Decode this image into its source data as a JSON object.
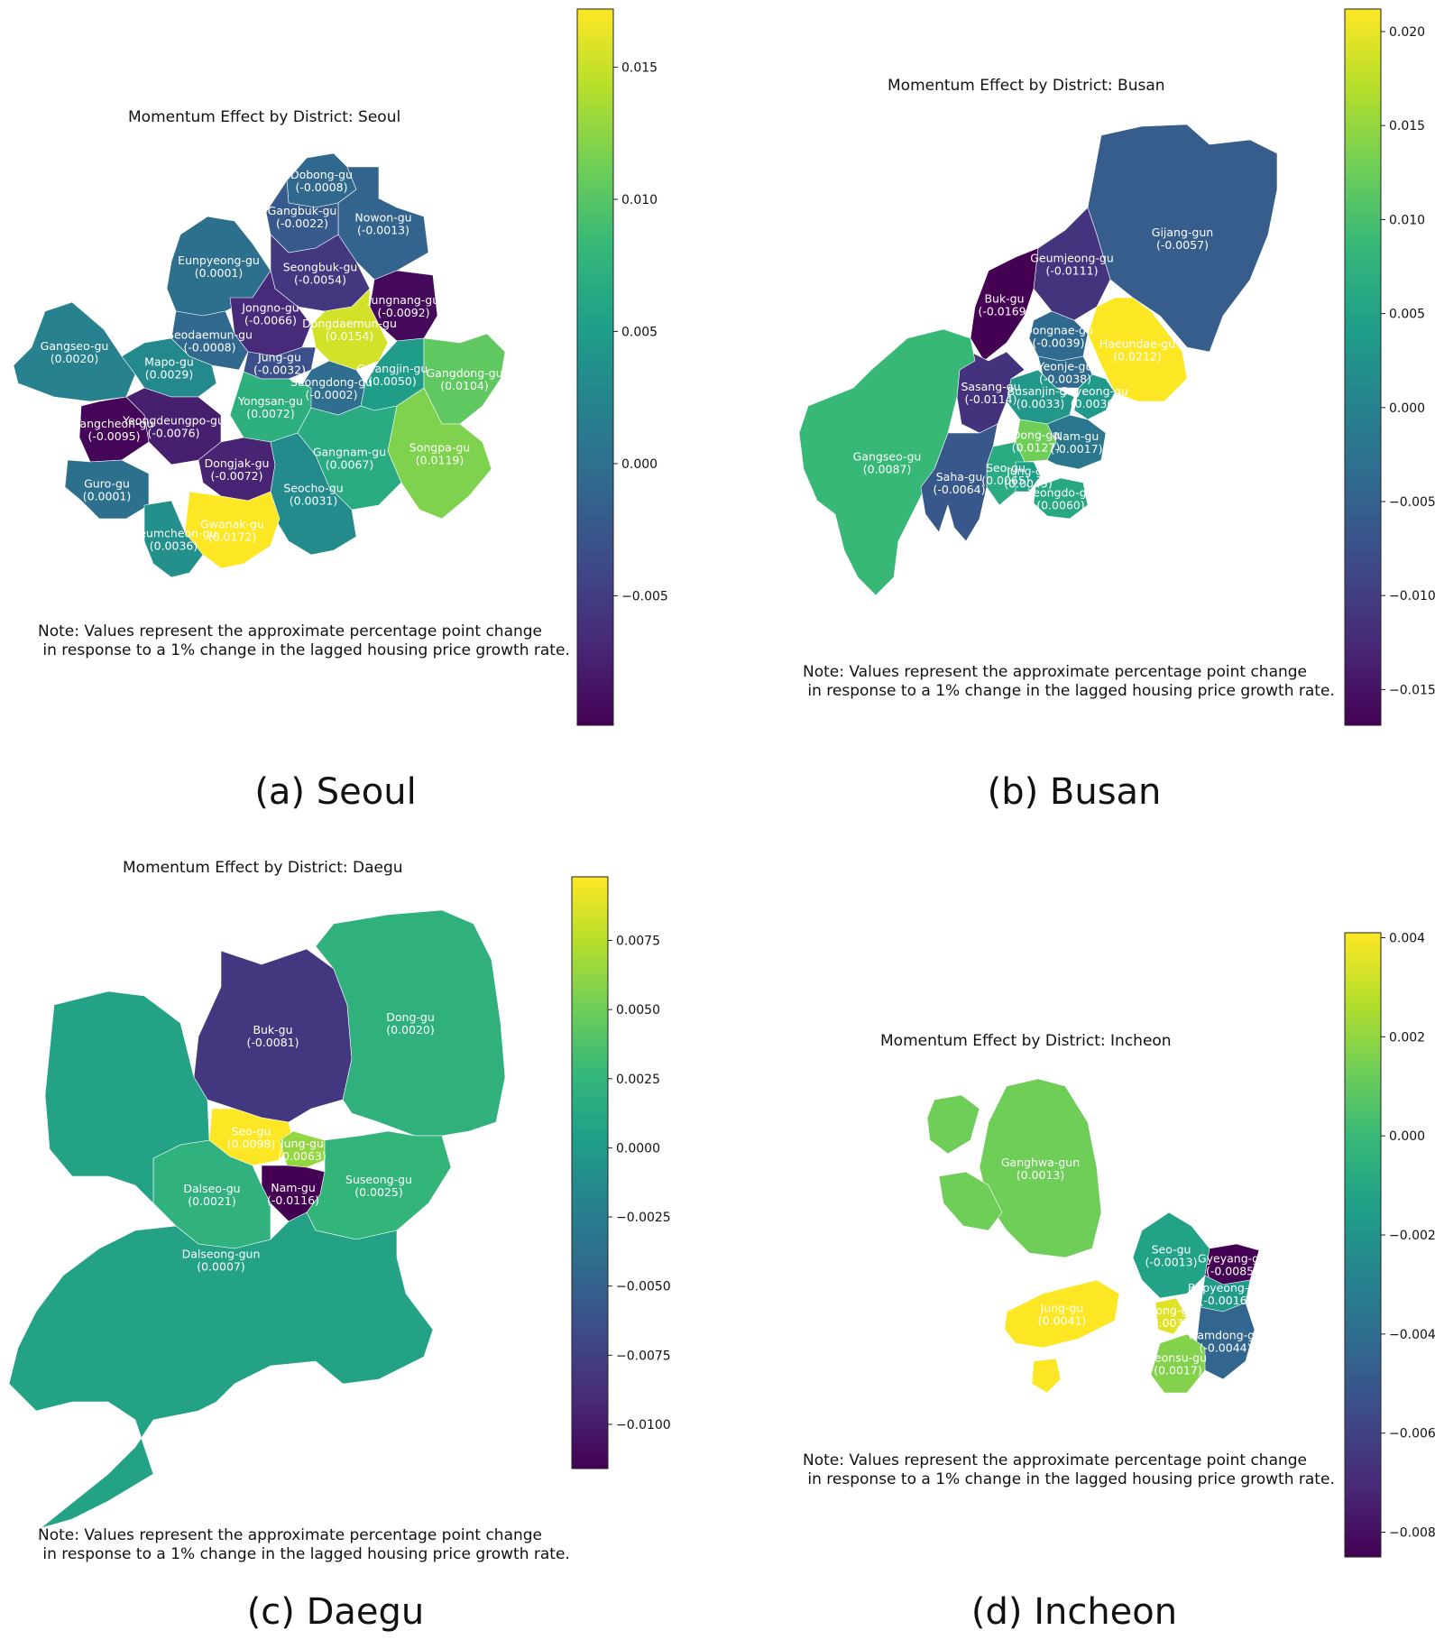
{
  "palette": {
    "low": "#440154",
    "mid": "#21918c",
    "high": "#fde725"
  },
  "panels": [
    {
      "id": "seoul",
      "title": "Momentum Effect by District: Seoul",
      "caption": "(a) Seoul",
      "note": "Note: Values represent the approximate percentage point change\n in response to a 1% change in the lagged housing price growth rate.",
      "colorbar": {
        "min": -0.0099,
        "max": 0.0172,
        "ticks": [
          "0.015",
          "0.010",
          "0.005",
          "0.000",
          "−0.005"
        ],
        "tick_values": [
          0.015,
          0.01,
          0.005,
          0.0,
          -0.005
        ]
      },
      "districts": [
        {
          "name": "Dobong-gu",
          "value": "(-0.0008)",
          "v": -0.0008
        },
        {
          "name": "Nowon-gu",
          "value": "(-0.0013)",
          "v": -0.0013
        },
        {
          "name": "Gangbuk-gu",
          "value": "(-0.0022)",
          "v": -0.0022
        },
        {
          "name": "Eunpyeong-gu",
          "value": "(0.0001)",
          "v": 0.0001
        },
        {
          "name": "Seongbuk-gu",
          "value": "(-0.0054)",
          "v": -0.0054
        },
        {
          "name": "Jungnang-gu",
          "value": "(-0.0092)",
          "v": -0.0092
        },
        {
          "name": "Jongno-gu",
          "value": "(-0.0066)",
          "v": -0.0066
        },
        {
          "name": "Dongdaemun-gu",
          "value": "(0.0154)",
          "v": 0.0154
        },
        {
          "name": "Seodaemun-gu",
          "value": "(-0.0008)",
          "v": -0.0008
        },
        {
          "name": "Gangseo-gu",
          "value": "(0.0020)",
          "v": 0.002
        },
        {
          "name": "Mapo-gu",
          "value": "(0.0029)",
          "v": 0.0029
        },
        {
          "name": "Jung-gu",
          "value": "(-0.0032)",
          "v": -0.0032
        },
        {
          "name": "Seongdong-gu",
          "value": "(-0.0002)",
          "v": -0.0002
        },
        {
          "name": "Gwangjin-gu",
          "value": "(0.0050)",
          "v": 0.005
        },
        {
          "name": "Gangdong-gu",
          "value": "(0.0104)",
          "v": 0.0104
        },
        {
          "name": "Yangcheon-gu",
          "value": "(-0.0095)",
          "v": -0.0095
        },
        {
          "name": "Yeongdeungpo-gu",
          "value": "(-0.0076)",
          "v": -0.0076
        },
        {
          "name": "Yongsan-gu",
          "value": "(0.0072)",
          "v": 0.0072
        },
        {
          "name": "Songpa-gu",
          "value": "(0.0119)",
          "v": 0.0119
        },
        {
          "name": "Gangnam-gu",
          "value": "(0.0067)",
          "v": 0.0067
        },
        {
          "name": "Dongjak-gu",
          "value": "(-0.0072)",
          "v": -0.0072
        },
        {
          "name": "Guro-gu",
          "value": "(0.0001)",
          "v": 0.0001
        },
        {
          "name": "Seocho-gu",
          "value": "(0.0031)",
          "v": 0.0031
        },
        {
          "name": "Gwanak-gu",
          "value": "(0.0172)",
          "v": 0.0172
        },
        {
          "name": "Geumcheon-gu",
          "value": "(0.0036)",
          "v": 0.0036
        }
      ]
    },
    {
      "id": "busan",
      "title": "Momentum Effect by District: Busan",
      "caption": "(b) Busan",
      "note": "Note: Values represent the approximate percentage point change\n in response to a 1% change in the lagged housing price growth rate.",
      "colorbar": {
        "min": -0.0169,
        "max": 0.0212,
        "ticks": [
          "0.020",
          "0.015",
          "0.010",
          "0.005",
          "0.000",
          "−0.005",
          "−0.010",
          "−0.015"
        ],
        "tick_values": [
          0.02,
          0.015,
          0.01,
          0.005,
          0.0,
          -0.005,
          -0.01,
          -0.015
        ]
      },
      "districts": [
        {
          "name": "Gijang-gun",
          "value": "(-0.0057)",
          "v": -0.0057
        },
        {
          "name": "Geumjeong-gu",
          "value": "(-0.0111)",
          "v": -0.0111
        },
        {
          "name": "Buk-gu",
          "value": "(-0.0169)",
          "v": -0.0169
        },
        {
          "name": "Dongnae-gu",
          "value": "(-0.0039)",
          "v": -0.0039
        },
        {
          "name": "Haeundae-gu",
          "value": "(0.0212)",
          "v": 0.0212
        },
        {
          "name": "Yeonje-gu",
          "value": "(-0.0038)",
          "v": -0.0038
        },
        {
          "name": "Busanjin-gu",
          "value": "(0.0033)",
          "v": 0.0033
        },
        {
          "name": "Sasang-gu",
          "value": "(-0.0114)",
          "v": -0.0114
        },
        {
          "name": "Suyeong-gu",
          "value": "(0.0036)",
          "v": 0.0036
        },
        {
          "name": "Gangseo-gu",
          "value": "(0.0087)",
          "v": 0.0087
        },
        {
          "name": "Dong-gu",
          "value": "(0.0127)",
          "v": 0.0127
        },
        {
          "name": "Nam-gu",
          "value": "(-0.0017)",
          "v": -0.0017
        },
        {
          "name": "Seo-gu",
          "value": "(0.0065)",
          "v": 0.0065
        },
        {
          "name": "Jung-gu",
          "value": "(0.0045)",
          "v": 0.0045
        },
        {
          "name": "Saha-gu",
          "value": "(-0.0064)",
          "v": -0.0064
        },
        {
          "name": "Yeongdo-gu",
          "value": "(0.0060)",
          "v": 0.006
        }
      ]
    },
    {
      "id": "daegu",
      "title": "Momentum Effect by District: Daegu",
      "caption": "(c) Daegu",
      "note": "Note: Values represent the approximate percentage point change\n in response to a 1% change in the lagged housing price growth rate.",
      "colorbar": {
        "min": -0.0116,
        "max": 0.0098,
        "ticks": [
          "0.0075",
          "0.0050",
          "0.0025",
          "0.0000",
          "−0.0025",
          "−0.0050",
          "−0.0075",
          "−0.0100"
        ],
        "tick_values": [
          0.0075,
          0.005,
          0.0025,
          0.0,
          -0.0025,
          -0.005,
          -0.0075,
          -0.01
        ]
      },
      "districts": [
        {
          "name": "Buk-gu",
          "value": "(-0.0081)",
          "v": -0.0081
        },
        {
          "name": "Dong-gu",
          "value": "(0.0020)",
          "v": 0.002
        },
        {
          "name": "Seo-gu",
          "value": "(0.0098)",
          "v": 0.0098
        },
        {
          "name": "Jung-gu",
          "value": "(0.0063)",
          "v": 0.0063
        },
        {
          "name": "Nam-gu",
          "value": "(-0.0116)",
          "v": -0.0116
        },
        {
          "name": "Dalseo-gu",
          "value": "(0.0021)",
          "v": 0.0021
        },
        {
          "name": "Suseong-gu",
          "value": "(0.0025)",
          "v": 0.0025
        },
        {
          "name": "Dalseong-gun",
          "value": "(0.0007)",
          "v": 0.0007
        }
      ]
    },
    {
      "id": "incheon",
      "title": "Momentum Effect by District: Incheon",
      "caption": "(d) Incheon",
      "note": "Note: Values represent the approximate percentage point change\n in response to a 1% change in the lagged housing price growth rate.",
      "colorbar": {
        "min": -0.0085,
        "max": 0.0041,
        "ticks": [
          "0.004",
          "0.002",
          "0.000",
          "−0.002",
          "−0.004",
          "−0.006",
          "−0.008"
        ],
        "tick_values": [
          0.004,
          0.002,
          0.0,
          -0.002,
          -0.004,
          -0.006,
          -0.008
        ]
      },
      "districts": [
        {
          "name": "Ganghwa-gun",
          "value": "(0.0013)",
          "v": 0.0013
        },
        {
          "name": "Seo-gu",
          "value": "(-0.0013)",
          "v": -0.0013
        },
        {
          "name": "Gyeyang-gu",
          "value": "(-0.0085)",
          "v": -0.0085
        },
        {
          "name": "Bupyeong-gu",
          "value": "(-0.0016)",
          "v": -0.0016
        },
        {
          "name": "Jung-gu",
          "value": "(0.0041)",
          "v": 0.0041
        },
        {
          "name": "Dong-gu",
          "value": "(0.0035)",
          "v": 0.0035
        },
        {
          "name": "Namdong-gu",
          "value": "(-0.0044)",
          "v": -0.0044
        },
        {
          "name": "Yeonsu-gu",
          "value": "(0.0017)",
          "v": 0.0017
        }
      ]
    }
  ]
}
